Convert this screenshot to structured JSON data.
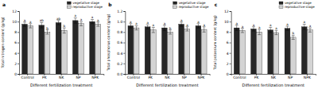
{
  "chart_data": [
    {
      "type": "bar",
      "title": "a",
      "xlabel": "Different fertilization treatment",
      "ylabel": "Total nitrogen content (g/kg)",
      "categories": [
        "Control",
        "PK",
        "NK",
        "NP",
        "NPK"
      ],
      "series": [
        {
          "name": "vegetative stage",
          "color": "#262626",
          "values": [
            9.5,
            9.3,
            9.8,
            10.2,
            10.0
          ],
          "errors": [
            0.4,
            0.5,
            0.4,
            0.5,
            0.4
          ],
          "letters": [
            "a",
            "ab",
            "ab",
            "a",
            "a"
          ]
        },
        {
          "name": "reproductive stage",
          "color": "#d4d4d4",
          "values": [
            9.2,
            8.0,
            8.3,
            9.6,
            9.5
          ],
          "errors": [
            0.4,
            0.4,
            0.5,
            0.4,
            0.4
          ],
          "letters": [
            "a",
            "b",
            "b",
            "a",
            "a"
          ]
        }
      ],
      "ylim": [
        0,
        12
      ],
      "yticks": [
        0,
        2,
        4,
        6,
        8,
        10,
        12
      ],
      "legend": "top"
    },
    {
      "type": "bar",
      "title": "b",
      "xlabel": "Different fertilization treatment",
      "ylabel": "Total phosphorus content (g/kg)",
      "categories": [
        "Control",
        "PK",
        "NK",
        "NP",
        "NPK"
      ],
      "series": [
        {
          "name": "vegetative stage",
          "color": "#262626",
          "values": [
            0.92,
            0.9,
            0.88,
            0.95,
            0.92
          ],
          "errors": [
            0.04,
            0.04,
            0.05,
            0.04,
            0.04
          ],
          "letters": [
            "a",
            "a",
            "a",
            "a",
            "a"
          ]
        },
        {
          "name": "reproductive stage",
          "color": "#d4d4d4",
          "values": [
            0.88,
            0.84,
            0.8,
            0.86,
            0.85
          ],
          "errors": [
            0.04,
            0.05,
            0.04,
            0.04,
            0.05
          ],
          "letters": [
            "a",
            "a",
            "b",
            "a",
            "a"
          ]
        }
      ],
      "ylim": [
        0,
        1.2
      ],
      "yticks": [
        {
          "value": 0,
          "label": "0.0"
        },
        0.2,
        0.4,
        0.6,
        0.8,
        {
          "value": 1,
          "label": "1.0"
        },
        1.2
      ],
      "legend": "top"
    },
    {
      "type": "bar",
      "title": "c",
      "xlabel": "Different fertilization treatment",
      "ylabel": "Total potassium content (g/kg)",
      "categories": [
        "Control",
        "PK",
        "NK",
        "NP",
        "NPK"
      ],
      "series": [
        {
          "name": "vegetative stage",
          "color": "#262626",
          "values": [
            8.8,
            8.6,
            8.4,
            8.7,
            9.0
          ],
          "errors": [
            0.5,
            0.4,
            0.5,
            0.4,
            0.5
          ],
          "letters": [
            "a",
            "a",
            "a",
            "a",
            "a"
          ]
        },
        {
          "name": "reproductive stage",
          "color": "#d4d4d4",
          "values": [
            8.3,
            8.0,
            7.9,
            7.0,
            8.4
          ],
          "errors": [
            0.4,
            0.5,
            0.4,
            0.4,
            0.4
          ],
          "letters": [
            "a",
            "a",
            "a",
            "b",
            "a"
          ]
        }
      ],
      "ylim": [
        0,
        12
      ],
      "yticks": [
        0,
        2,
        4,
        6,
        8,
        10,
        12
      ],
      "legend": "top"
    }
  ]
}
